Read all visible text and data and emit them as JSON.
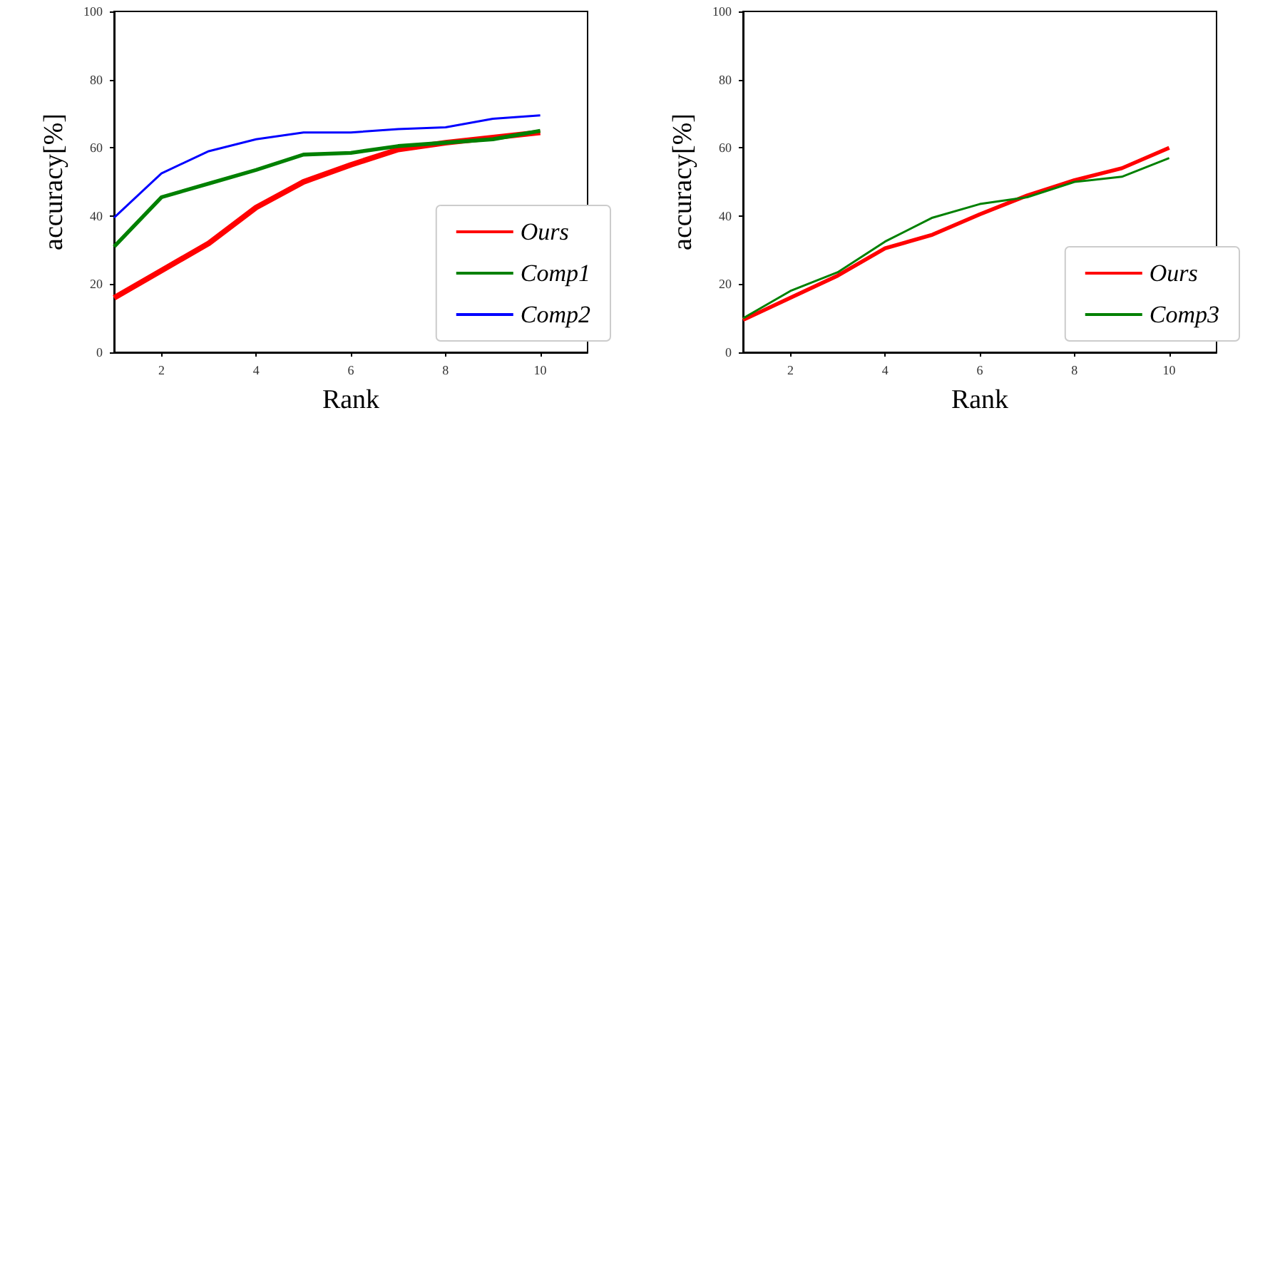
{
  "chart_data": [
    {
      "type": "line",
      "xlabel": "Rank",
      "ylabel": "accuracy[%]",
      "x": [
        1,
        2,
        3,
        4,
        5,
        6,
        7,
        8,
        9,
        10
      ],
      "xlim": [
        1,
        11
      ],
      "xticks": [
        2,
        4,
        6,
        8,
        10
      ],
      "ylim": [
        0,
        100
      ],
      "yticks": [
        0,
        20,
        40,
        60,
        80,
        100
      ],
      "grid": false,
      "legend": "bottom right",
      "marker": "none",
      "line_style": "solid",
      "series": [
        {
          "name": "Ours",
          "color": "#ff0000",
          "values": [
            16,
            24,
            32,
            42.5,
            50,
            55,
            59.5,
            61.5,
            63,
            64.5
          ]
        },
        {
          "name": "Comp1",
          "color": "#008000",
          "values": [
            31,
            45.5,
            49.5,
            53.5,
            58,
            58.5,
            60.5,
            61.5,
            62.5,
            65
          ]
        },
        {
          "name": "Comp2",
          "color": "#0000ff",
          "values": [
            39.5,
            52.5,
            59,
            62.5,
            64.5,
            64.5,
            65.5,
            66,
            68.5,
            69.5
          ]
        }
      ]
    },
    {
      "type": "line",
      "xlabel": "Rank",
      "ylabel": "accuracy[%]",
      "x": [
        1,
        2,
        3,
        4,
        5,
        6,
        7,
        8,
        9,
        10
      ],
      "xlim": [
        1,
        11
      ],
      "xticks": [
        2,
        4,
        6,
        8,
        10
      ],
      "ylim": [
        0,
        100
      ],
      "yticks": [
        0,
        20,
        40,
        60,
        80,
        100
      ],
      "grid": false,
      "legend": "bottom right",
      "marker": "none",
      "line_style": "solid",
      "series": [
        {
          "name": "Ours",
          "color": "#ff0000",
          "values": [
            9.5,
            16,
            22.5,
            30.5,
            34.5,
            40.5,
            46,
            50.5,
            54,
            60
          ]
        },
        {
          "name": "Comp3",
          "color": "#008000",
          "values": [
            10,
            18,
            23.5,
            32.5,
            39.5,
            43.5,
            45.5,
            50,
            51.5,
            57
          ]
        }
      ]
    }
  ]
}
